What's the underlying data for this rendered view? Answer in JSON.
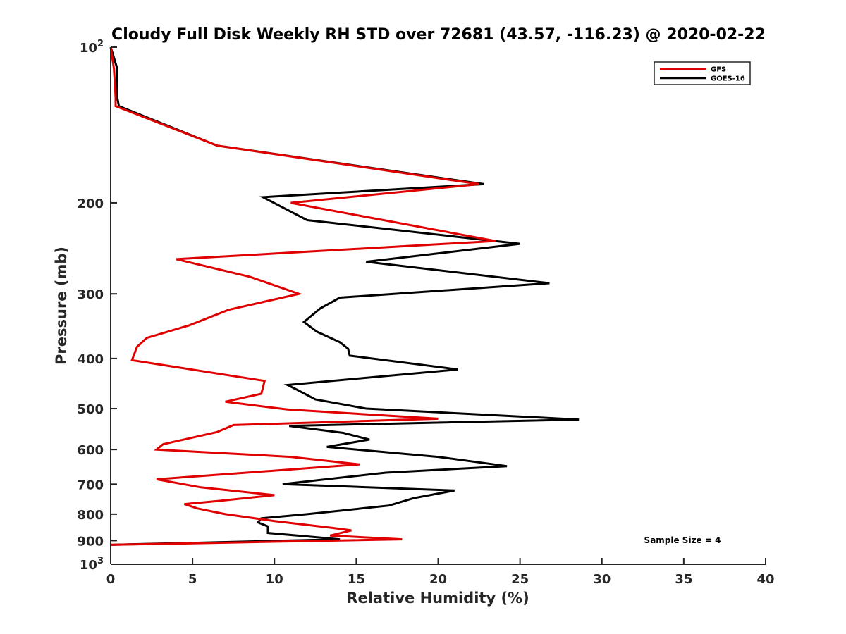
{
  "chart_data": {
    "type": "line",
    "title": "Cloudy Full Disk Weekly RH STD over 72681 (43.57, -116.23) @ 2020-02-22",
    "xlabel": "Relative Humidity (%)",
    "ylabel": "Pressure (mb)",
    "xlim": [
      0,
      40
    ],
    "ylim": [
      100,
      1000
    ],
    "y_scale": "log",
    "y_reversed": true,
    "grid": false,
    "legend_position": "top-right",
    "x_ticks": [
      "0",
      "5",
      "10",
      "15",
      "20",
      "25",
      "30",
      "35",
      "40"
    ],
    "y_ticks": [
      {
        "value": 100,
        "base": "10",
        "exp": "2"
      },
      {
        "value": 200,
        "label": "200"
      },
      {
        "value": 300,
        "label": "300"
      },
      {
        "value": 400,
        "label": "400"
      },
      {
        "value": 500,
        "label": "500"
      },
      {
        "value": 600,
        "label": "600"
      },
      {
        "value": 700,
        "label": "700"
      },
      {
        "value": 800,
        "label": "800"
      },
      {
        "value": 900,
        "label": "900"
      },
      {
        "value": 1000,
        "base": "10",
        "exp": "3"
      }
    ],
    "annotation": "Sample Size = 4",
    "series": [
      {
        "name": "GFS",
        "color": "#e00000",
        "points": [
          [
            0.0,
            100
          ],
          [
            0.2,
            110
          ],
          [
            0.3,
            125
          ],
          [
            0.3,
            130
          ],
          [
            6.5,
            155
          ],
          [
            22.5,
            184
          ],
          [
            11.0,
            200
          ],
          [
            23.5,
            237
          ],
          [
            4.0,
            257
          ],
          [
            8.5,
            278
          ],
          [
            11.5,
            300
          ],
          [
            7.2,
            322
          ],
          [
            4.8,
            345
          ],
          [
            2.2,
            365
          ],
          [
            1.6,
            380
          ],
          [
            1.3,
            403
          ],
          [
            8.0,
            435
          ],
          [
            9.4,
            442
          ],
          [
            9.2,
            468
          ],
          [
            7.0,
            485
          ],
          [
            10.8,
            502
          ],
          [
            20.0,
            523
          ],
          [
            7.5,
            538
          ],
          [
            6.5,
            555
          ],
          [
            3.2,
            586
          ],
          [
            2.8,
            600
          ],
          [
            11.0,
            620
          ],
          [
            15.2,
            641
          ],
          [
            2.8,
            685
          ],
          [
            5.5,
            710
          ],
          [
            10.0,
            735
          ],
          [
            6.5,
            755
          ],
          [
            4.5,
            765
          ],
          [
            5.3,
            780
          ],
          [
            7.0,
            800
          ],
          [
            10.0,
            825
          ],
          [
            13.5,
            850
          ],
          [
            14.7,
            860
          ],
          [
            13.4,
            880
          ],
          [
            17.8,
            895
          ],
          [
            0.0,
            917
          ]
        ]
      },
      {
        "name": "GOES-16",
        "color": "#000000",
        "points": [
          [
            0.0,
            100
          ],
          [
            0.4,
            110
          ],
          [
            0.4,
            125
          ],
          [
            0.5,
            130
          ],
          [
            6.5,
            155
          ],
          [
            22.8,
            184
          ],
          [
            9.3,
            195
          ],
          [
            12.0,
            216
          ],
          [
            25.0,
            240
          ],
          [
            15.6,
            260
          ],
          [
            26.8,
            286
          ],
          [
            14.0,
            305
          ],
          [
            12.8,
            320
          ],
          [
            11.8,
            340
          ],
          [
            12.6,
            355
          ],
          [
            14.0,
            372
          ],
          [
            14.5,
            383
          ],
          [
            14.6,
            395
          ],
          [
            21.2,
            420
          ],
          [
            10.8,
            450
          ],
          [
            11.4,
            460
          ],
          [
            12.5,
            480
          ],
          [
            15.6,
            500
          ],
          [
            28.6,
            525
          ],
          [
            10.9,
            540
          ],
          [
            14.2,
            557
          ],
          [
            15.8,
            574
          ],
          [
            13.2,
            593
          ],
          [
            20.0,
            620
          ],
          [
            24.2,
            646
          ],
          [
            16.8,
            665
          ],
          [
            10.5,
            700
          ],
          [
            21.0,
            720
          ],
          [
            18.5,
            745
          ],
          [
            17.0,
            770
          ],
          [
            12.0,
            800
          ],
          [
            9.2,
            815
          ],
          [
            9.0,
            830
          ],
          [
            9.6,
            845
          ],
          [
            9.6,
            870
          ],
          [
            14.0,
            895
          ],
          [
            0.0,
            917
          ]
        ]
      }
    ]
  }
}
